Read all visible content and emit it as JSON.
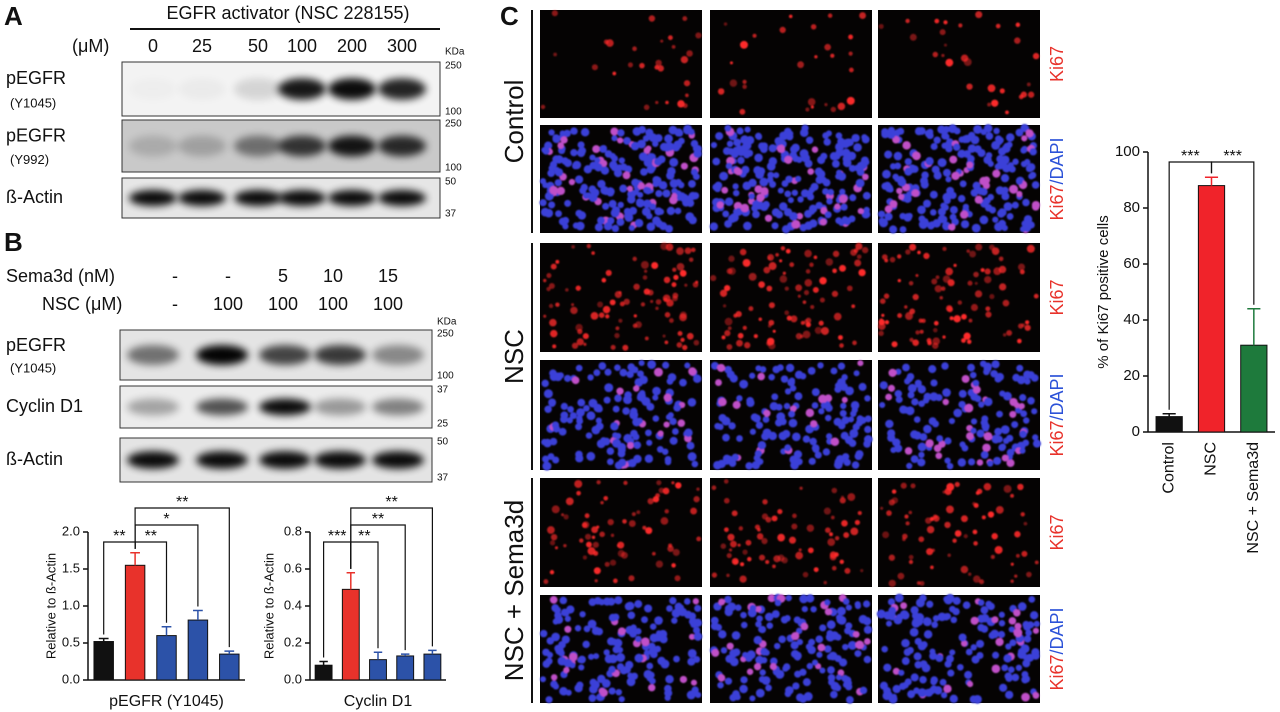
{
  "panels": {
    "a": "A",
    "b": "B",
    "c": "C"
  },
  "panel_a": {
    "title": "EGFR activator (NSC 228155)",
    "unit": "(μM)",
    "lanes": [
      "0",
      "25",
      "50",
      "100",
      "200",
      "300"
    ],
    "kda": "KDa",
    "blots": [
      {
        "label": "pEGFR",
        "sublabel": "(Y1045)",
        "markers": [
          "250",
          "100"
        ]
      },
      {
        "label": "pEGFR",
        "sublabel": "(Y992)",
        "markers": [
          "250",
          "100"
        ]
      },
      {
        "label": "ß-Actin",
        "markers": [
          "50",
          "37"
        ]
      }
    ]
  },
  "panel_b": {
    "rows": [
      {
        "label": "Sema3d (nM)",
        "values": [
          "-",
          "-",
          "5",
          "10",
          "15"
        ]
      },
      {
        "label": "NSC (μM)",
        "values": [
          "-",
          "100",
          "100",
          "100",
          "100"
        ]
      }
    ],
    "kda": "KDa",
    "blots": [
      {
        "label": "pEGFR",
        "sublabel": "(Y1045)",
        "markers": [
          "250",
          "100"
        ]
      },
      {
        "label": "Cyclin D1",
        "markers": [
          "37",
          "25"
        ]
      },
      {
        "label": "ß-Actin",
        "markers": [
          "50",
          "37"
        ]
      }
    ]
  },
  "panel_c": {
    "groups": [
      "Control",
      "NSC",
      "NSC + Sema3d"
    ],
    "stain": "Ki67",
    "counterstain": "/DAPI"
  },
  "chart_data": [
    {
      "type": "bar",
      "y_label": "Relative to ß-Actin",
      "x_label": "pEGFR (Y1045)",
      "values": [
        0.52,
        1.55,
        0.6,
        0.81,
        0.35
      ],
      "errors": [
        0.04,
        0.17,
        0.12,
        0.13,
        0.04
      ],
      "colors": [
        "#111111",
        "#e8322b",
        "#2c52a8",
        "#2c52a8",
        "#2c52a8"
      ],
      "ylim": [
        0,
        2.0
      ],
      "yticks": [
        {
          "value": 0,
          "label": "0.0"
        },
        {
          "value": 0.5,
          "label": "0.5"
        },
        {
          "value": 1.0,
          "label": "1.0"
        },
        {
          "value": 1.5,
          "label": "1.5"
        },
        {
          "value": 2.0,
          "label": "2.0"
        }
      ],
      "annotations": [
        {
          "from": 0,
          "to": 1,
          "label": "**"
        },
        {
          "from": 1,
          "to": 2,
          "label": "**"
        },
        {
          "from": 1,
          "to": 3,
          "label": "*"
        },
        {
          "from": 1,
          "to": 4,
          "label": "**"
        }
      ]
    },
    {
      "type": "bar",
      "y_label": "Relative to ß-Actin",
      "x_label": "Cyclin D1",
      "values": [
        0.08,
        0.49,
        0.11,
        0.13,
        0.14
      ],
      "errors": [
        0.02,
        0.09,
        0.04,
        0.01,
        0.02
      ],
      "colors": [
        "#111111",
        "#e8322b",
        "#2c52a8",
        "#2c52a8",
        "#2c52a8"
      ],
      "ylim": [
        0,
        0.8
      ],
      "yticks": [
        {
          "value": 0,
          "label": "0.0"
        },
        {
          "value": 0.2,
          "label": "0.2"
        },
        {
          "value": 0.4,
          "label": "0.4"
        },
        {
          "value": 0.6,
          "label": "0.6"
        },
        {
          "value": 0.8,
          "label": "0.8"
        }
      ],
      "annotations": [
        {
          "from": 0,
          "to": 1,
          "label": "***"
        },
        {
          "from": 1,
          "to": 2,
          "label": "**"
        },
        {
          "from": 1,
          "to": 3,
          "label": "**"
        },
        {
          "from": 1,
          "to": 4,
          "label": "**"
        }
      ]
    },
    {
      "type": "bar",
      "y_label": "% of Ki67 positive cells",
      "categories": [
        "Control",
        "NSC",
        "NSC + Sema3d"
      ],
      "values": [
        5.5,
        88,
        31
      ],
      "errors": [
        1,
        3,
        13
      ],
      "colors": [
        "#111111",
        "#f0232a",
        "#1e7a3c"
      ],
      "ylim": [
        0,
        100
      ],
      "yticks": [
        0,
        20,
        40,
        60,
        80,
        100
      ],
      "annotations": [
        {
          "from": 0,
          "to": 1,
          "label": "***"
        },
        {
          "from": 1,
          "to": 2,
          "label": "***"
        }
      ]
    }
  ]
}
